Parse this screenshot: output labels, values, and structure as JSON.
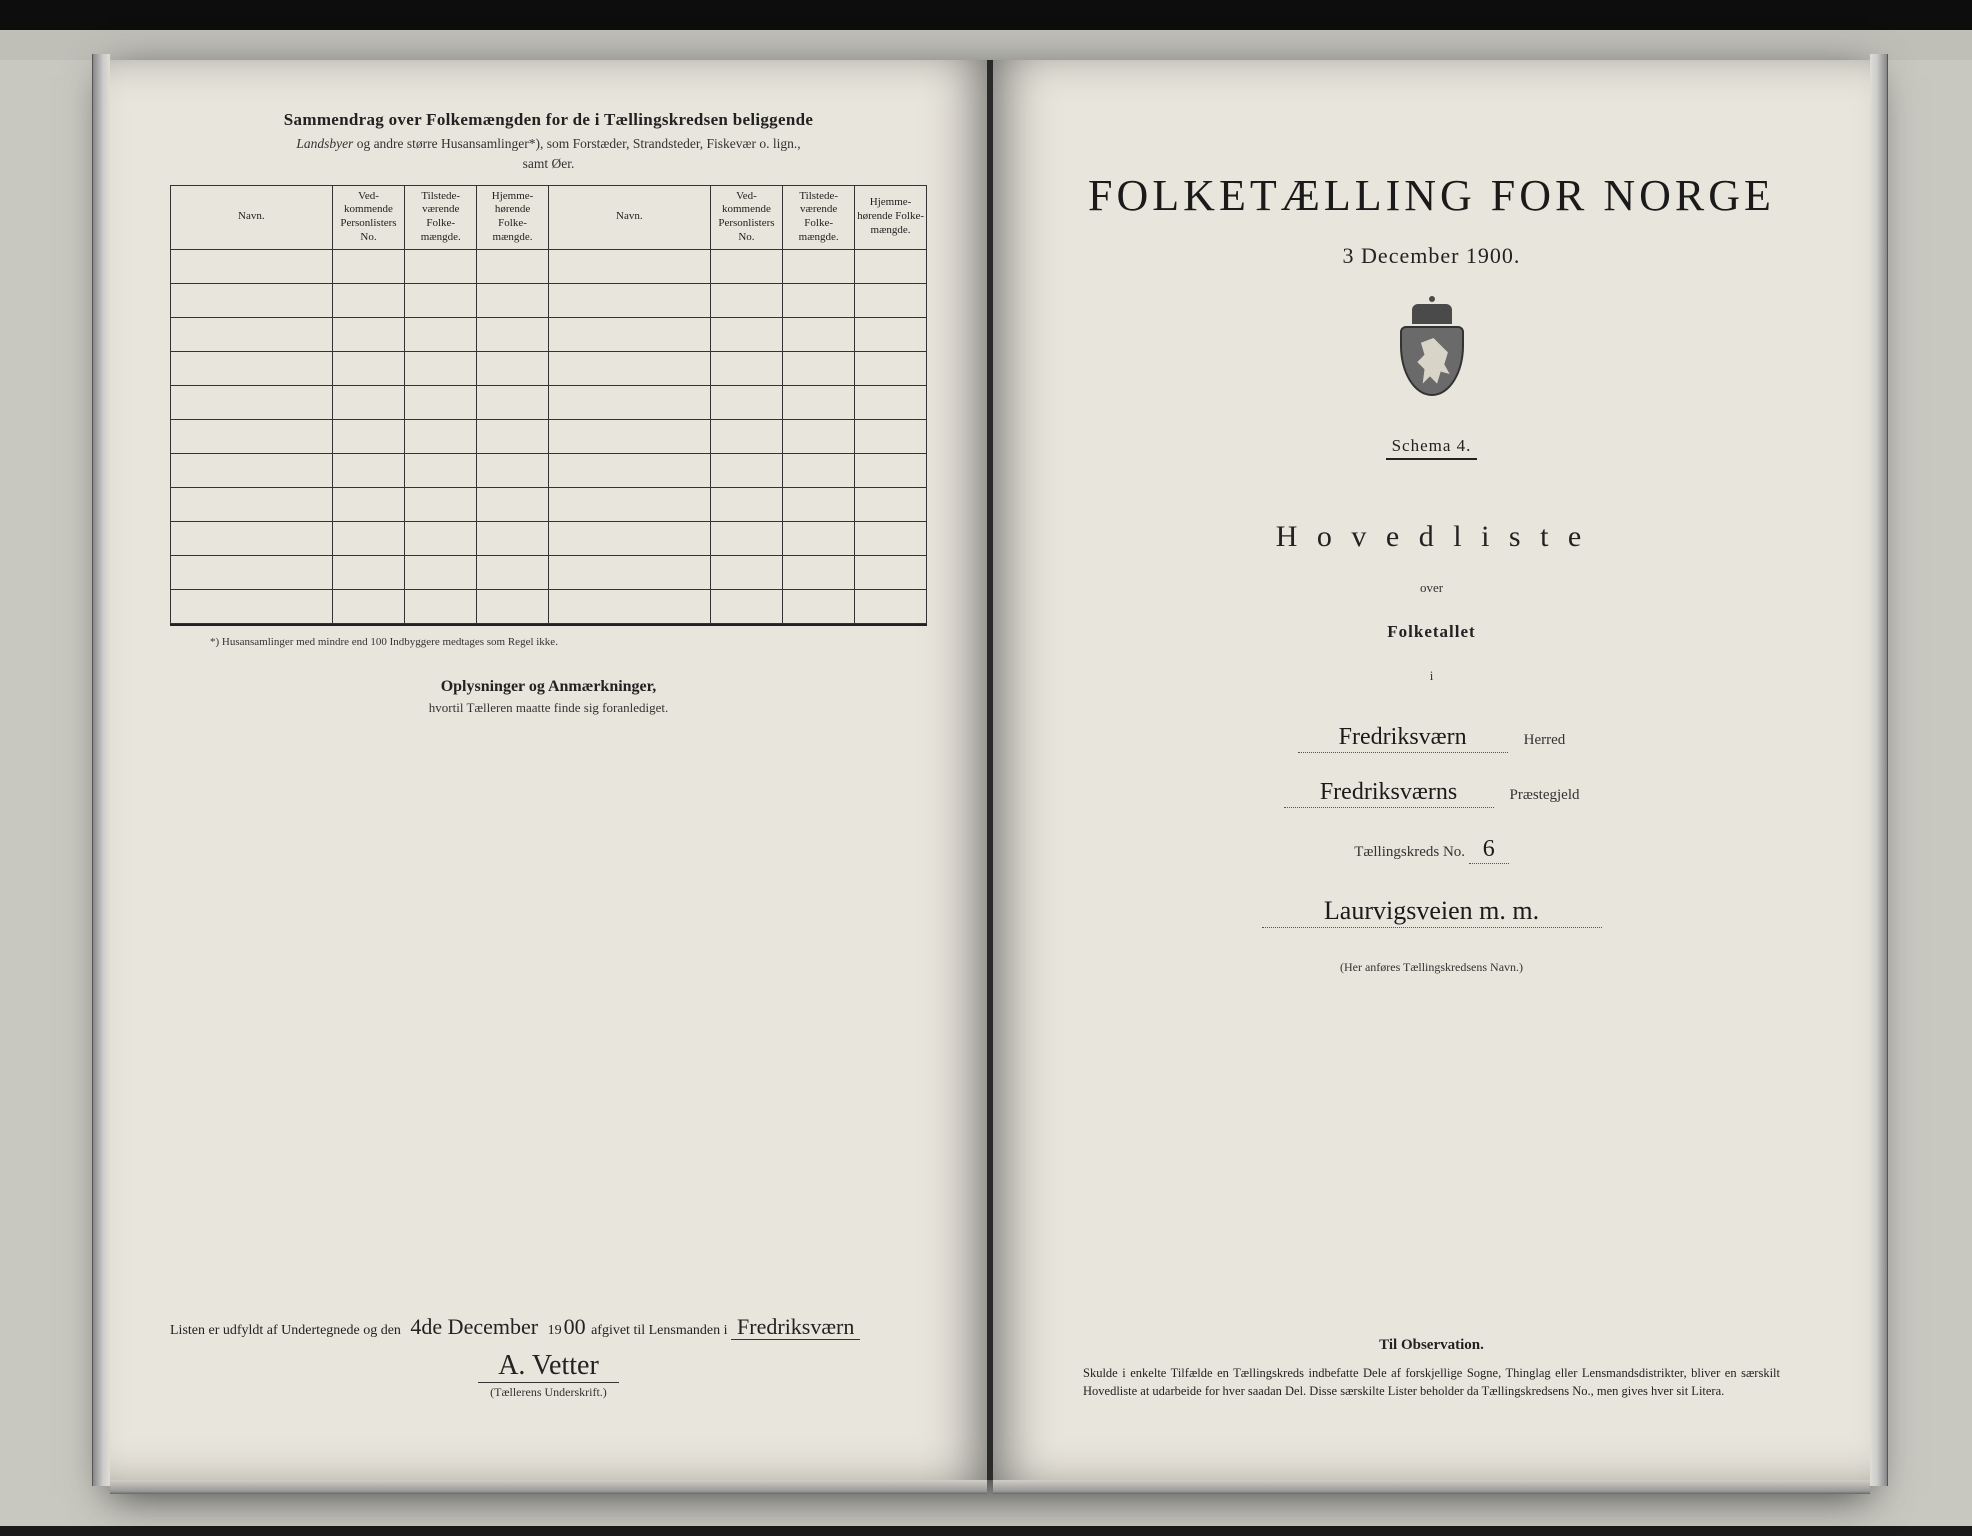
{
  "colors": {
    "background": "#1a1a1a",
    "desk": "#c8c8c0",
    "paper": "#e8e5dc",
    "ink": "#222222",
    "rule": "#333333"
  },
  "left": {
    "summary_title": "Sammendrag over Folkemængden for de i Tællingskredsen beliggende",
    "summary_sub_line1_prefix": "Landsbyer",
    "summary_sub_line1_rest": " og andre større Husansamlinger*), som Forstæder, Strandsteder, Fiskevær o. lign.,",
    "summary_sub_line2": "samt Øer.",
    "table": {
      "columns": [
        "Navn.",
        "Ved-kommende Personlisters No.",
        "Tilstede-værende Folke-mængde.",
        "Hjemme-hørende Folke-mængde.",
        "Navn.",
        "Ved-kommende Personlisters No.",
        "Tilstede-værende Folke-mængde.",
        "Hjemme-hørende Folke-mængde."
      ],
      "row_count": 11
    },
    "footnote": "*) Husansamlinger med mindre end 100 Indbyggere medtages som Regel ikke.",
    "opl_title": "Oplysninger og Anmærkninger,",
    "opl_sub": "hvortil Tælleren maatte finde sig foranlediget.",
    "signoff": {
      "prefix": "Listen er udfyldt af Undertegnede og den",
      "date_hand": "4de December",
      "year_printed_prefix": " 19",
      "year_hand": "00",
      "mid": " afgivet til Lensmanden i ",
      "place_hand": "Fredriksværn",
      "signature": "A. Vetter",
      "sig_label": "(Tællerens Underskrift.)"
    }
  },
  "right": {
    "title": "FOLKETÆLLING FOR NORGE",
    "date": "3 December 1900.",
    "schema": "Schema 4.",
    "hovedliste": "H o v e d l i s t e",
    "over": "over",
    "folketallet": "Folketallet",
    "i": "i",
    "herred_hand": "Fredriksværn",
    "herred_label": "Herred",
    "praestegjeld_hand": "Fredriksværns",
    "praestegjeld_label": "Præstegjeld",
    "kreds_label_prefix": "Tællingskreds No.",
    "kreds_no_hand": "6",
    "kreds_name_hand": "Laurvigsveien m. m.",
    "kreds_note": "(Her anføres Tællingskredsens Navn.)",
    "observation_title": "Til Observation.",
    "observation_text": "Skulde i enkelte Tilfælde en Tællingskreds indbefatte Dele af forskjellige Sogne, Thinglag eller Lensmandsdistrikter, bliver en særskilt Hovedliste at udarbeide for hver saadan Del. Disse særskilte Lister beholder da Tællingskredsens No., men gives hver sit Litera."
  }
}
